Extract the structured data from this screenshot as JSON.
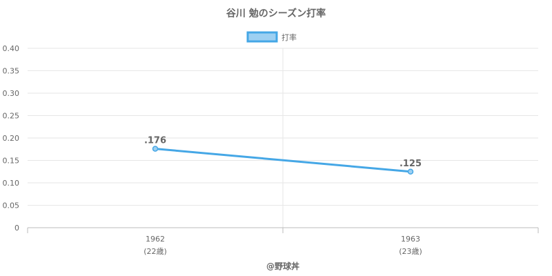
{
  "chart_data": {
    "type": "line",
    "title": "谷川 勉のシーズン打率",
    "legend": {
      "label": "打率",
      "position": "top-center"
    },
    "categories": [
      "1962",
      "1963"
    ],
    "category_sublabels": [
      "(22歳)",
      "(23歳)"
    ],
    "series": [
      {
        "name": "打率",
        "values": [
          0.176,
          0.125
        ],
        "data_labels": [
          ".176",
          ".125"
        ]
      }
    ],
    "ylim": [
      0,
      0.4
    ],
    "yticks": [
      0,
      0.05,
      0.1,
      0.15,
      0.2,
      0.25,
      0.3,
      0.35,
      0.4
    ],
    "ytick_labels": [
      "0",
      "0.05",
      "0.10",
      "0.15",
      "0.20",
      "0.25",
      "0.30",
      "0.35",
      "0.40"
    ],
    "grid": true,
    "credit": "@野球丼",
    "colors": {
      "line": "#45a7e6",
      "legend_fill": "#9dd0f2",
      "grid": "#e6e6e6",
      "axis": "#bbbbbb",
      "text": "#666666"
    }
  }
}
